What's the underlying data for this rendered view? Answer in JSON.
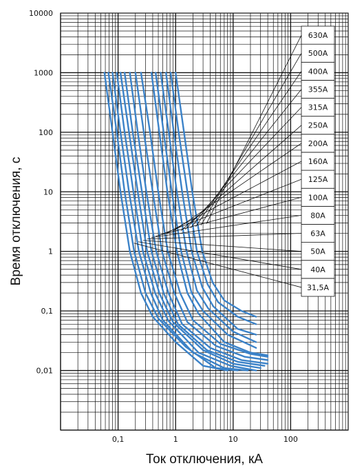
{
  "chart_data": {
    "type": "line",
    "title": "",
    "xlabel": "Ток отключения, кА",
    "ylabel": "Время отключения, с",
    "x_scale": "log",
    "y_scale": "log",
    "xlim": [
      0.01,
      1000
    ],
    "ylim": [
      0.001,
      10000
    ],
    "grid": true,
    "x_ticks": [
      {
        "value": 0.1,
        "label": "0,1"
      },
      {
        "value": 1,
        "label": "1"
      },
      {
        "value": 10,
        "label": "10"
      },
      {
        "value": 100,
        "label": "100"
      }
    ],
    "y_ticks": [
      {
        "value": 10000,
        "label": "10000"
      },
      {
        "value": 1000,
        "label": "1000"
      },
      {
        "value": 100,
        "label": "100"
      },
      {
        "value": 10,
        "label": "10"
      },
      {
        "value": 1,
        "label": "1"
      },
      {
        "value": 0.1,
        "label": "0,1"
      },
      {
        "value": 0.01,
        "label": "0,01"
      }
    ],
    "series_color": "#3b82c8",
    "series": [
      {
        "name": "31,5А",
        "points": [
          [
            0.058,
            1000
          ],
          [
            0.08,
            100
          ],
          [
            0.11,
            10
          ],
          [
            0.16,
            1
          ],
          [
            0.25,
            0.2
          ],
          [
            0.4,
            0.08
          ],
          [
            1,
            0.03
          ],
          [
            3,
            0.012
          ],
          [
            8,
            0.01
          ]
        ]
      },
      {
        "name": "40А",
        "points": [
          [
            0.068,
            1000
          ],
          [
            0.095,
            100
          ],
          [
            0.13,
            10
          ],
          [
            0.19,
            1
          ],
          [
            0.3,
            0.2
          ],
          [
            0.5,
            0.075
          ],
          [
            1.5,
            0.025
          ],
          [
            5,
            0.011
          ],
          [
            12,
            0.01
          ]
        ]
      },
      {
        "name": "50А",
        "points": [
          [
            0.08,
            1000
          ],
          [
            0.11,
            100
          ],
          [
            0.155,
            10
          ],
          [
            0.23,
            1
          ],
          [
            0.37,
            0.2
          ],
          [
            0.6,
            0.07
          ],
          [
            2,
            0.02
          ],
          [
            7,
            0.011
          ],
          [
            18,
            0.01
          ]
        ]
      },
      {
        "name": "63А",
        "points": [
          [
            0.095,
            1000
          ],
          [
            0.13,
            100
          ],
          [
            0.185,
            10
          ],
          [
            0.27,
            1
          ],
          [
            0.44,
            0.2
          ],
          [
            0.75,
            0.068
          ],
          [
            2.5,
            0.02
          ],
          [
            9,
            0.012
          ],
          [
            25,
            0.01
          ]
        ]
      },
      {
        "name": "80А",
        "points": [
          [
            0.11,
            1000
          ],
          [
            0.155,
            100
          ],
          [
            0.22,
            10
          ],
          [
            0.32,
            1
          ],
          [
            0.52,
            0.2
          ],
          [
            0.9,
            0.065
          ],
          [
            3,
            0.022
          ],
          [
            10,
            0.013
          ],
          [
            30,
            0.011
          ]
        ]
      },
      {
        "name": "100А",
        "points": [
          [
            0.13,
            1000
          ],
          [
            0.18,
            100
          ],
          [
            0.26,
            10
          ],
          [
            0.38,
            1
          ],
          [
            0.62,
            0.2
          ],
          [
            1.1,
            0.06
          ],
          [
            3.5,
            0.022
          ],
          [
            12,
            0.014
          ],
          [
            35,
            0.012
          ]
        ]
      },
      {
        "name": "125А",
        "points": [
          [
            0.16,
            1000
          ],
          [
            0.22,
            100
          ],
          [
            0.31,
            10
          ],
          [
            0.46,
            1
          ],
          [
            0.75,
            0.2
          ],
          [
            1.3,
            0.06
          ],
          [
            4,
            0.024
          ],
          [
            14,
            0.015
          ],
          [
            40,
            0.013
          ]
        ]
      },
      {
        "name": "160А",
        "points": [
          [
            0.2,
            1000
          ],
          [
            0.28,
            100
          ],
          [
            0.4,
            10
          ],
          [
            0.58,
            1
          ],
          [
            0.95,
            0.2
          ],
          [
            1.6,
            0.065
          ],
          [
            5,
            0.026
          ],
          [
            16,
            0.017
          ],
          [
            40,
            0.015
          ]
        ]
      },
      {
        "name": "200А",
        "points": [
          [
            0.25,
            1000
          ],
          [
            0.36,
            100
          ],
          [
            0.5,
            10
          ],
          [
            0.73,
            1
          ],
          [
            1.2,
            0.2
          ],
          [
            2,
            0.07
          ],
          [
            6,
            0.028
          ],
          [
            20,
            0.019
          ],
          [
            40,
            0.017
          ]
        ]
      },
      {
        "name": "250А",
        "points": [
          [
            0.38,
            1000
          ],
          [
            0.52,
            100
          ],
          [
            0.72,
            10
          ],
          [
            1.05,
            1
          ],
          [
            1.6,
            0.2
          ],
          [
            2.5,
            0.09
          ],
          [
            7,
            0.03
          ],
          [
            20,
            0.02
          ],
          [
            40,
            0.018
          ]
        ]
      },
      {
        "name": "315А",
        "points": [
          [
            0.45,
            1000
          ],
          [
            0.62,
            100
          ],
          [
            0.86,
            10
          ],
          [
            1.25,
            1
          ],
          [
            1.9,
            0.2
          ],
          [
            3,
            0.1
          ],
          [
            8,
            0.04
          ],
          [
            25,
            0.024
          ]
        ]
      },
      {
        "name": "355А",
        "points": [
          [
            0.55,
            1000
          ],
          [
            0.76,
            100
          ],
          [
            1.05,
            10
          ],
          [
            1.55,
            1
          ],
          [
            2.35,
            0.22
          ],
          [
            3.7,
            0.11
          ],
          [
            10,
            0.045
          ],
          [
            25,
            0.03
          ]
        ]
      },
      {
        "name": "400А",
        "points": [
          [
            0.68,
            1000
          ],
          [
            0.93,
            100
          ],
          [
            1.3,
            10
          ],
          [
            1.9,
            1
          ],
          [
            2.9,
            0.25
          ],
          [
            4.5,
            0.12
          ],
          [
            12,
            0.05
          ],
          [
            25,
            0.04
          ]
        ]
      },
      {
        "name": "500А",
        "points": [
          [
            0.82,
            1000
          ],
          [
            1.13,
            100
          ],
          [
            1.6,
            10
          ],
          [
            2.35,
            1
          ],
          [
            3.6,
            0.28
          ],
          [
            5.5,
            0.14
          ],
          [
            12,
            0.08
          ],
          [
            25,
            0.06
          ]
        ]
      },
      {
        "name": "630А",
        "points": [
          [
            1,
            1000
          ],
          [
            1.4,
            100
          ],
          [
            1.95,
            10
          ],
          [
            2.9,
            1
          ],
          [
            4.4,
            0.3
          ],
          [
            7,
            0.15
          ],
          [
            14,
            0.1
          ],
          [
            25,
            0.08
          ]
        ]
      }
    ]
  }
}
